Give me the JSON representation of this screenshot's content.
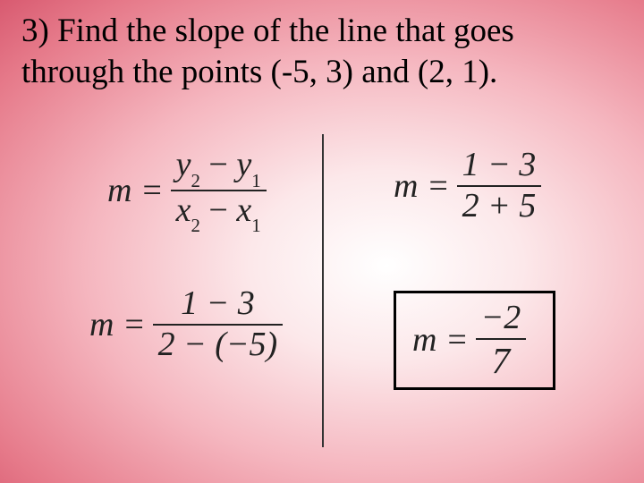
{
  "title": "3) Find the slope of the line that goes through the points (-5, 3) and (2, 1).",
  "formula1": {
    "lhs": "m =",
    "num_y2": "y",
    "num_sub2": "2",
    "num_minus": " − ",
    "num_y1": "y",
    "num_sub1": "1",
    "den_x2": "x",
    "den_sub2": "2",
    "den_minus": " − ",
    "den_x1": "x",
    "den_sub1": "1"
  },
  "formula2": {
    "lhs": "m =",
    "num": "1 − 3",
    "den": "2 − (−5)"
  },
  "formula3": {
    "lhs": "m =",
    "num": "1 − 3",
    "den": "2 + 5"
  },
  "formula4": {
    "lhs": "m =",
    "num": "−2",
    "den": "7"
  },
  "colors": {
    "text": "#222222",
    "bg_center": "#ffffff",
    "bg_edge": "#d85a70",
    "box_border": "#000000"
  }
}
